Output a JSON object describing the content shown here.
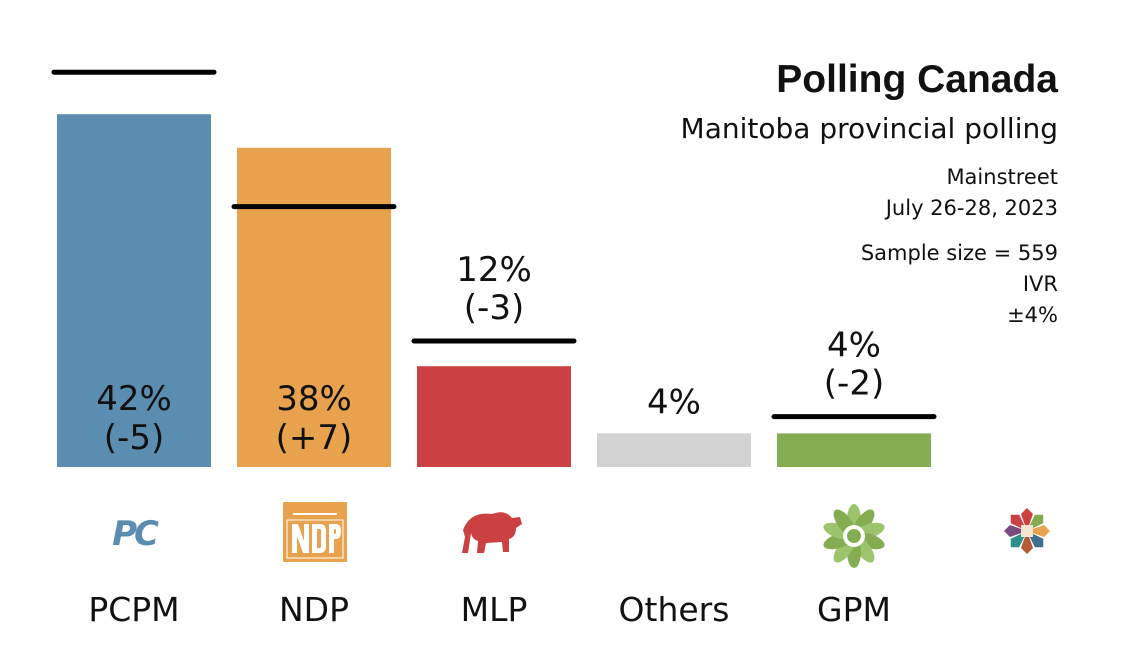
{
  "header": {
    "title": "Polling Canada",
    "subtitle": "Manitoba provincial polling",
    "pollster": "Mainstreet",
    "dates": "July 26-28, 2023",
    "sample": "Sample size = 559",
    "method": "IVR",
    "margin": "±4%"
  },
  "chart_data": {
    "type": "bar",
    "title": "Manitoba provincial polling",
    "categories": [
      "PCPM",
      "NDP",
      "MLP",
      "Others",
      "GPM"
    ],
    "values": [
      42,
      38,
      12,
      4,
      4
    ],
    "previous": [
      47,
      31,
      15,
      null,
      6
    ],
    "value_labels": [
      "42%",
      "38%",
      "12%",
      "4%",
      "4%"
    ],
    "change_labels": [
      "(-5)",
      "(+7)",
      "(-3)",
      "",
      "(-2)"
    ],
    "label_inside": [
      true,
      true,
      false,
      false,
      false
    ],
    "colors": [
      "#5b8db0",
      "#e8a24d",
      "#cb4141",
      "#d2d2d2",
      "#84ad52"
    ],
    "party_logos": [
      "pc-logo",
      "ndp-logo",
      "bison-logo",
      "",
      "gpm-logo"
    ],
    "extra_logo": "keewatinohk-logo",
    "ylim": [
      0,
      50
    ],
    "grid": false,
    "legend": "none"
  }
}
